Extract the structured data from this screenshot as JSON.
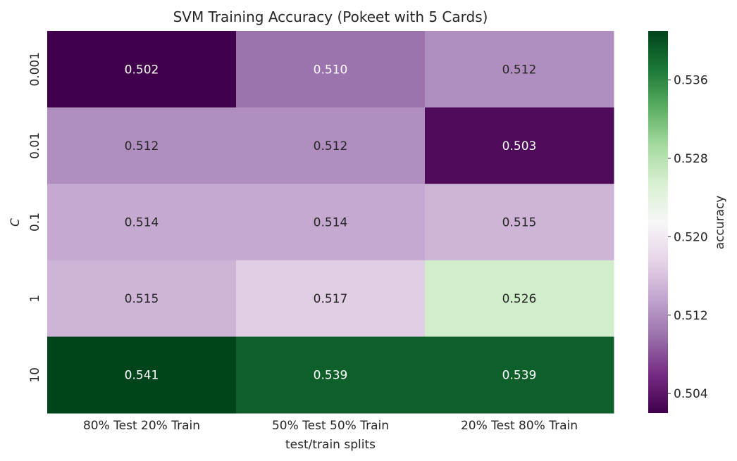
{
  "chart_data": {
    "type": "heatmap",
    "title": "SVM Training Accuracy (Pokeet with 5 Cards)",
    "xlabel": "test/train splits",
    "ylabel": "C",
    "x_categories": [
      "80% Test 20% Train",
      "50% Test 50% Train",
      "20% Test 80% Train"
    ],
    "y_categories": [
      "0.001",
      "0.01",
      "0.1",
      "1",
      "10"
    ],
    "values": [
      [
        0.502,
        0.51,
        0.512
      ],
      [
        0.512,
        0.512,
        0.503
      ],
      [
        0.514,
        0.514,
        0.515
      ],
      [
        0.515,
        0.517,
        0.526
      ],
      [
        0.541,
        0.539,
        0.539
      ]
    ],
    "value_labels": [
      [
        "0.502",
        "0.510",
        "0.512"
      ],
      [
        "0.512",
        "0.512",
        "0.503"
      ],
      [
        "0.514",
        "0.514",
        "0.515"
      ],
      [
        "0.515",
        "0.517",
        "0.526"
      ],
      [
        "0.541",
        "0.539",
        "0.539"
      ]
    ],
    "colorbar": {
      "label": "accuracy",
      "vmin": 0.502,
      "vmax": 0.541,
      "ticks": [
        0.504,
        0.512,
        0.52,
        0.528,
        0.536
      ],
      "tick_labels": [
        "0.504",
        "0.512",
        "0.520",
        "0.528",
        "0.536"
      ],
      "colormap": "PRGn",
      "colormap_stops": [
        "#40004b",
        "#762a83",
        "#9970ab",
        "#c2a5cf",
        "#e7d4e8",
        "#f7f7f7",
        "#d9f0d3",
        "#a6dba0",
        "#5aae61",
        "#1b7837",
        "#00441b"
      ]
    },
    "text_colors": {
      "dark_cell": "#ffffff",
      "light_cell": "#262626"
    }
  }
}
